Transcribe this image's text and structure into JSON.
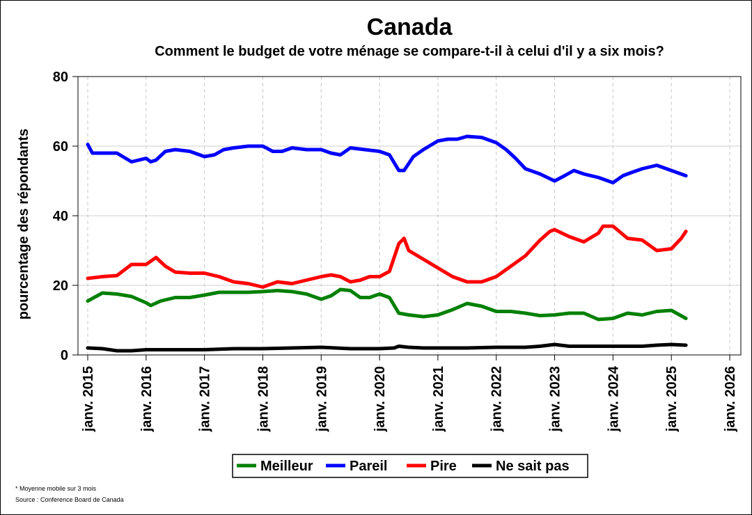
{
  "chart_data": {
    "type": "line",
    "title": "Canada",
    "subtitle": "Comment le budget de votre ménage se compare-t-il à celui d'il y a six mois?",
    "xlabel": "",
    "ylabel": "pourcentage des répondants",
    "ylim": [
      0,
      80
    ],
    "yticks": [
      "0",
      "20",
      "40",
      "60",
      "80"
    ],
    "xlim": [
      2015,
      2026
    ],
    "xticks": [
      "janv. 2015",
      "janv. 2016",
      "janv. 2017",
      "janv. 2018",
      "janv. 2019",
      "janv. 2020",
      "janv. 2021",
      "janv. 2022",
      "janv. 2023",
      "janv. 2024",
      "janv. 2025",
      "janv. 2026"
    ],
    "grid": true,
    "legend_position": "bottom",
    "series": [
      {
        "name": "Meilleur",
        "color": "#008000",
        "x": [
          2015.0,
          2015.25,
          2015.5,
          2015.75,
          2016.0,
          2016.08,
          2016.25,
          2016.5,
          2016.75,
          2017.0,
          2017.25,
          2017.5,
          2017.75,
          2018.0,
          2018.25,
          2018.5,
          2018.75,
          2019.0,
          2019.17,
          2019.33,
          2019.5,
          2019.67,
          2019.83,
          2020.0,
          2020.17,
          2020.33,
          2020.5,
          2020.75,
          2021.0,
          2021.25,
          2021.5,
          2021.75,
          2022.0,
          2022.25,
          2022.5,
          2022.75,
          2023.0,
          2023.25,
          2023.5,
          2023.75,
          2024.0,
          2024.25,
          2024.5,
          2024.75,
          2025.0,
          2025.25
        ],
        "values": [
          15.5,
          17.8,
          17.5,
          16.8,
          15.0,
          14.2,
          15.5,
          16.5,
          16.5,
          17.2,
          18.0,
          18.0,
          18.0,
          18.2,
          18.5,
          18.2,
          17.5,
          16.0,
          17.0,
          18.8,
          18.5,
          16.5,
          16.5,
          17.5,
          16.5,
          12.0,
          11.5,
          11.0,
          11.5,
          13.0,
          14.8,
          14.0,
          12.5,
          12.5,
          12.0,
          11.3,
          11.5,
          12.0,
          12.0,
          10.2,
          10.5,
          12.0,
          11.5,
          12.5,
          12.8,
          10.5
        ]
      },
      {
        "name": "Pareil",
        "color": "#0000FF",
        "x": [
          2015.0,
          2015.08,
          2015.25,
          2015.5,
          2015.75,
          2016.0,
          2016.08,
          2016.17,
          2016.33,
          2016.5,
          2016.75,
          2017.0,
          2017.17,
          2017.33,
          2017.5,
          2017.75,
          2018.0,
          2018.17,
          2018.33,
          2018.5,
          2018.75,
          2019.0,
          2019.17,
          2019.33,
          2019.5,
          2019.75,
          2020.0,
          2020.17,
          2020.33,
          2020.42,
          2020.58,
          2020.75,
          2021.0,
          2021.17,
          2021.33,
          2021.5,
          2021.75,
          2022.0,
          2022.17,
          2022.33,
          2022.5,
          2022.75,
          2023.0,
          2023.17,
          2023.33,
          2023.5,
          2023.75,
          2024.0,
          2024.17,
          2024.33,
          2024.5,
          2024.75,
          2025.0,
          2025.25
        ],
        "values": [
          60.5,
          58.0,
          58.0,
          58.0,
          55.5,
          56.5,
          55.5,
          56.0,
          58.5,
          59.0,
          58.5,
          57.0,
          57.5,
          59.0,
          59.5,
          60.0,
          60.0,
          58.5,
          58.5,
          59.5,
          59.0,
          59.0,
          58.0,
          57.5,
          59.5,
          59.0,
          58.5,
          57.5,
          53.0,
          53.0,
          57.0,
          59.0,
          61.5,
          62.0,
          62.0,
          62.8,
          62.5,
          61.0,
          59.0,
          56.5,
          53.5,
          52.0,
          50.0,
          51.5,
          53.0,
          52.0,
          51.0,
          49.5,
          51.5,
          52.5,
          53.5,
          54.5,
          53.0,
          51.5
        ]
      },
      {
        "name": "Pire",
        "color": "#FF0000",
        "x": [
          2015.0,
          2015.25,
          2015.5,
          2015.75,
          2016.0,
          2016.17,
          2016.33,
          2016.5,
          2016.75,
          2017.0,
          2017.25,
          2017.5,
          2017.75,
          2018.0,
          2018.25,
          2018.5,
          2018.75,
          2019.0,
          2019.17,
          2019.33,
          2019.5,
          2019.67,
          2019.83,
          2020.0,
          2020.17,
          2020.33,
          2020.42,
          2020.5,
          2020.75,
          2021.0,
          2021.25,
          2021.5,
          2021.75,
          2022.0,
          2022.25,
          2022.5,
          2022.75,
          2022.92,
          2023.0,
          2023.25,
          2023.5,
          2023.75,
          2023.83,
          2024.0,
          2024.25,
          2024.5,
          2024.75,
          2025.0,
          2025.17,
          2025.25
        ],
        "values": [
          22.0,
          22.5,
          22.8,
          26.0,
          26.0,
          28.0,
          25.5,
          23.8,
          23.5,
          23.5,
          22.5,
          21.0,
          20.5,
          19.5,
          21.0,
          20.5,
          21.5,
          22.5,
          23.0,
          22.5,
          21.0,
          21.5,
          22.5,
          22.5,
          24.0,
          32.0,
          33.5,
          30.0,
          27.5,
          25.0,
          22.5,
          21.0,
          21.0,
          22.5,
          25.5,
          28.5,
          33.0,
          35.5,
          36.0,
          34.0,
          32.5,
          35.0,
          37.0,
          37.0,
          33.5,
          33.0,
          30.0,
          30.5,
          33.5,
          35.5
        ]
      },
      {
        "name": "Ne sait pas",
        "color": "#000000",
        "x": [
          2015.0,
          2015.25,
          2015.5,
          2015.75,
          2016.0,
          2016.5,
          2017.0,
          2017.5,
          2018.0,
          2018.5,
          2019.0,
          2019.5,
          2020.0,
          2020.25,
          2020.33,
          2020.5,
          2020.75,
          2021.0,
          2021.5,
          2022.0,
          2022.5,
          2022.75,
          2023.0,
          2023.25,
          2023.5,
          2024.0,
          2024.5,
          2024.75,
          2025.0,
          2025.25
        ],
        "values": [
          2.0,
          1.8,
          1.2,
          1.2,
          1.5,
          1.5,
          1.5,
          1.8,
          1.8,
          2.0,
          2.2,
          1.8,
          1.8,
          2.0,
          2.5,
          2.2,
          2.0,
          2.0,
          2.0,
          2.2,
          2.2,
          2.5,
          3.0,
          2.5,
          2.5,
          2.5,
          2.5,
          2.8,
          3.0,
          2.8
        ]
      }
    ]
  },
  "notes": {
    "footnote": "* Moyenne mobile sur 3 mois",
    "source": "Source : Conference Board de Canada"
  }
}
